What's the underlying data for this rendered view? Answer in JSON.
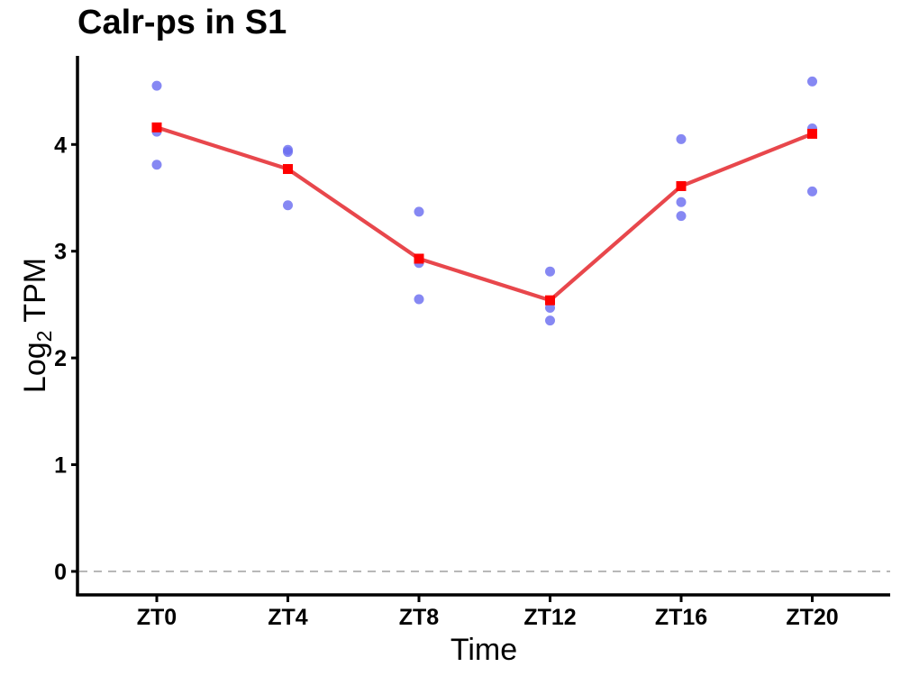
{
  "chart_data": {
    "type": "line",
    "title": "Calr-ps in S1",
    "xlabel": "Time",
    "ylabel_main": "Log",
    "ylabel_sub": "2",
    "ylabel_rest": " TPM",
    "categories": [
      "ZT0",
      "ZT4",
      "ZT8",
      "ZT12",
      "ZT16",
      "ZT20"
    ],
    "ylim": [
      -0.22,
      4.83
    ],
    "yticks": [
      0,
      1,
      2,
      3,
      4
    ],
    "grid": false,
    "reference_line": {
      "y": 0,
      "style": "dashed",
      "color": "#b3b3b3"
    },
    "mean_series": {
      "values": [
        4.16,
        3.77,
        2.93,
        2.54,
        3.61,
        4.1
      ],
      "color": "#e8474c",
      "marker_color": "#ff0000"
    },
    "replicates": {
      "color": "#6b6ef0",
      "values": [
        [
          4.55,
          4.12,
          3.81
        ],
        [
          3.95,
          3.93,
          3.43
        ],
        [
          3.37,
          2.89,
          2.55
        ],
        [
          2.81,
          2.47,
          2.35
        ],
        [
          4.05,
          3.46,
          3.33
        ],
        [
          4.59,
          4.15,
          3.56
        ]
      ]
    }
  }
}
